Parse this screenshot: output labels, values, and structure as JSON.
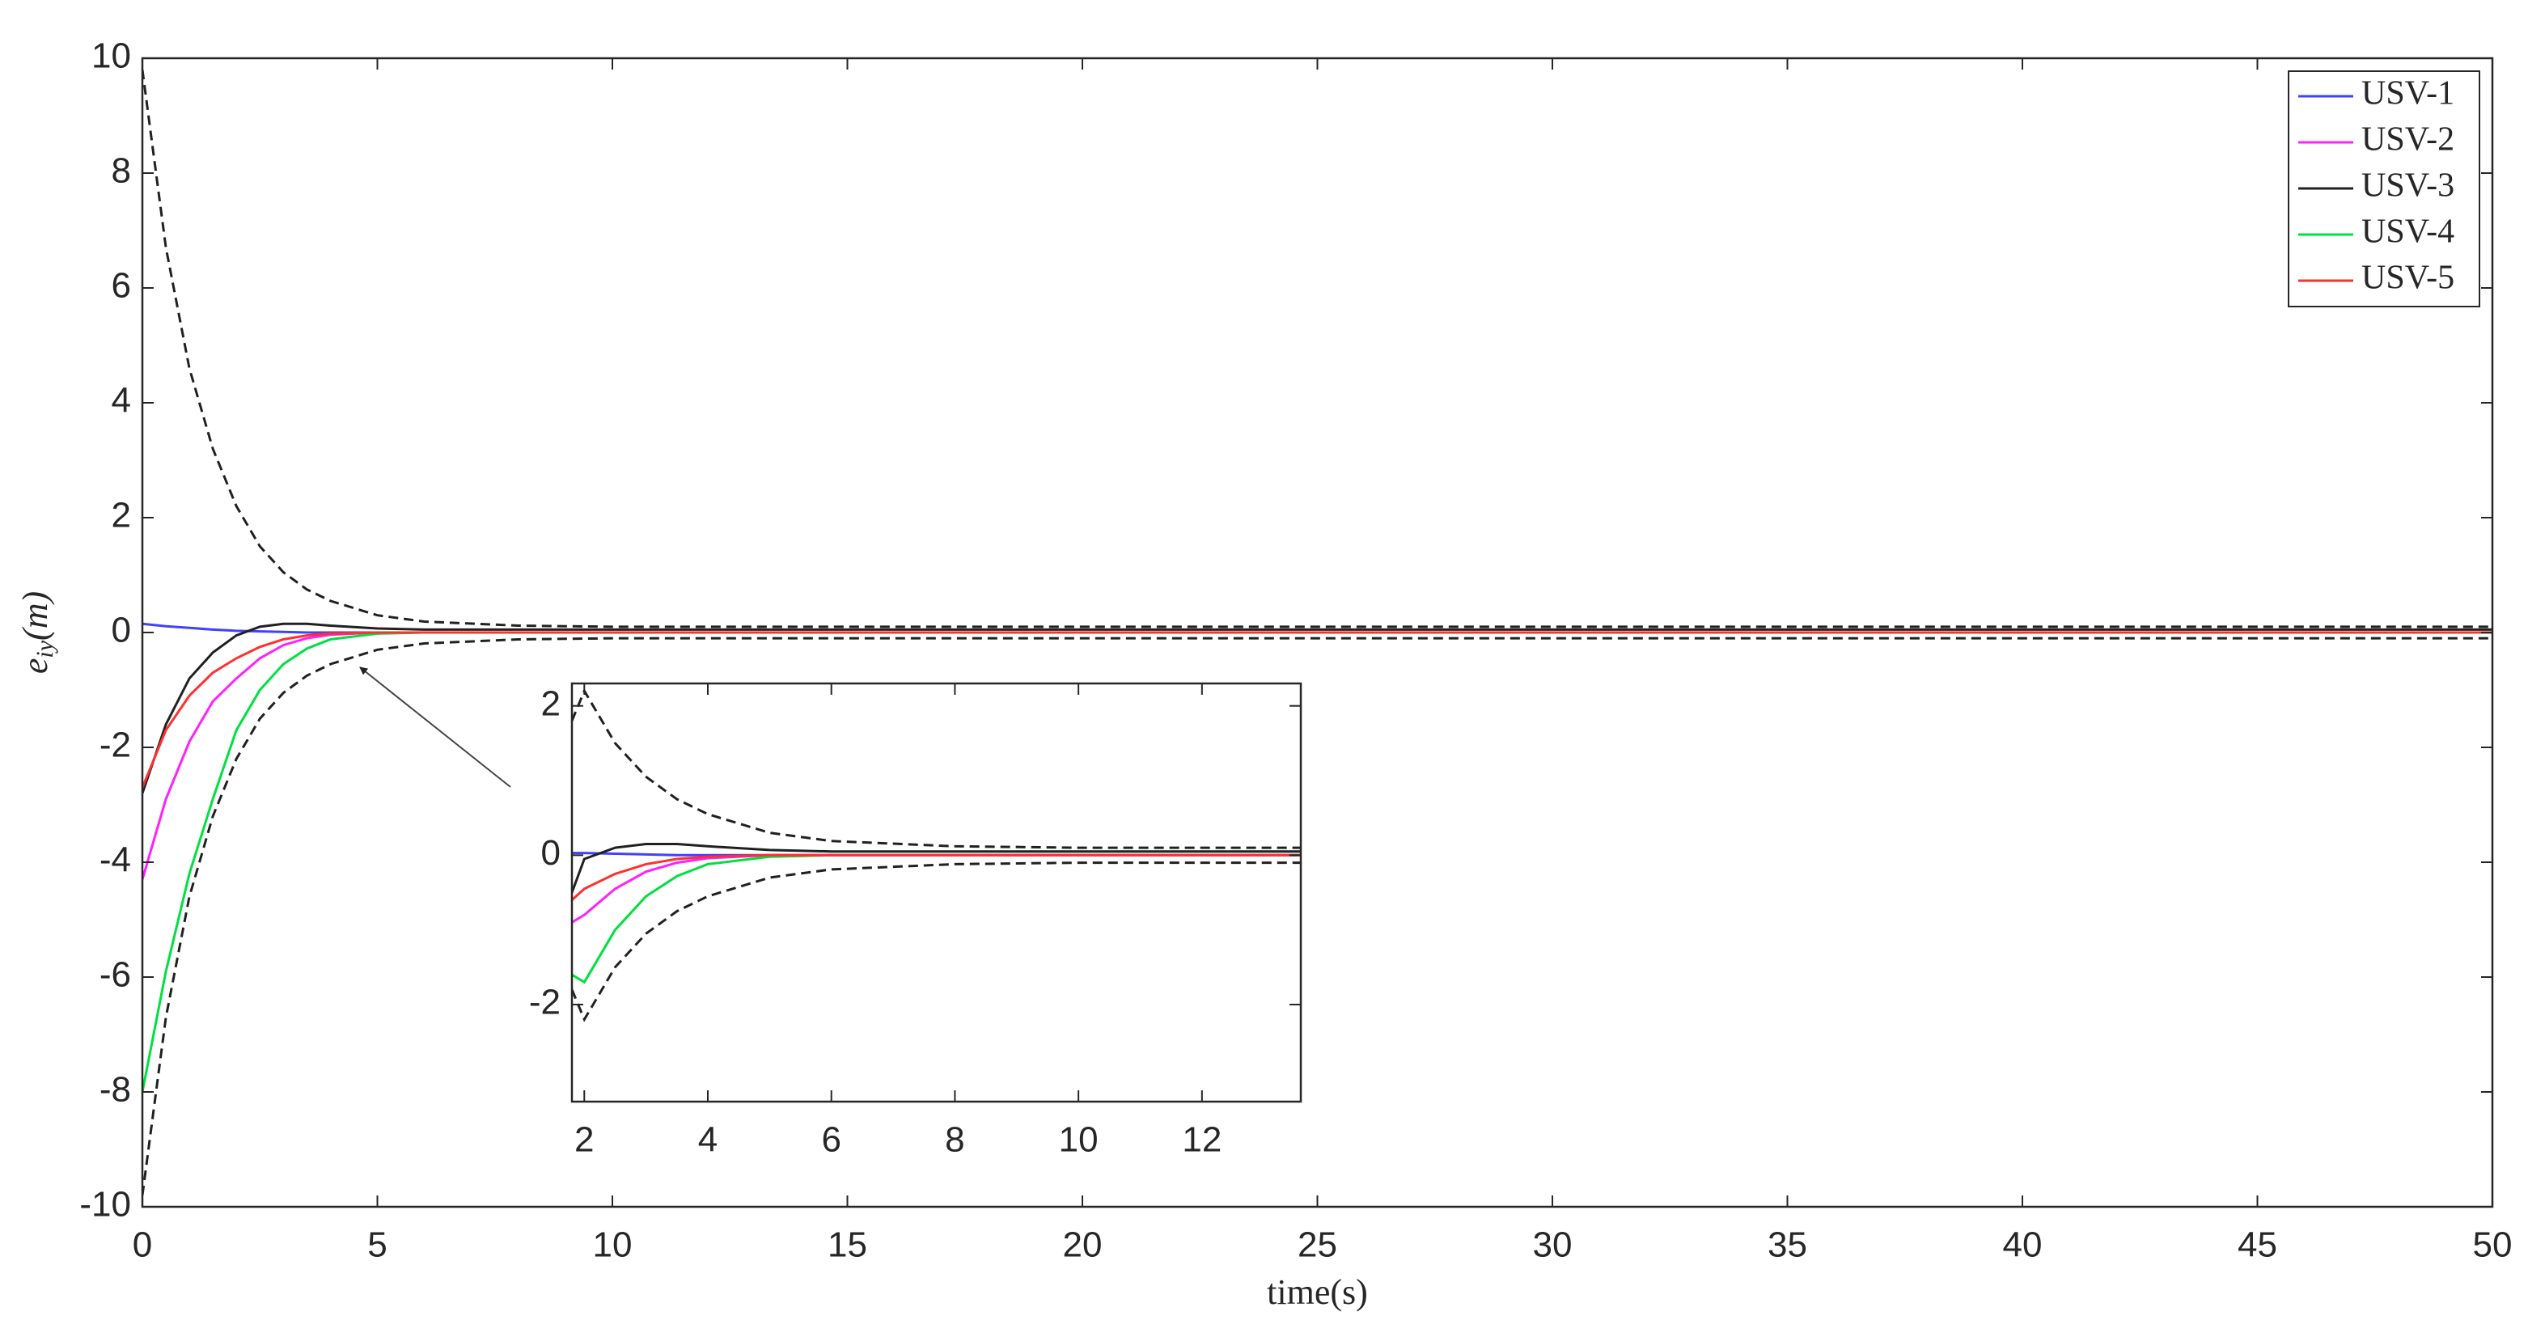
{
  "chart_data": [
    {
      "type": "line",
      "xlabel": "time(s)",
      "ylabel": "e_iy(m)",
      "x": [
        0,
        0.5,
        1,
        1.5,
        2,
        2.5,
        3,
        3.5,
        4,
        5,
        6,
        8,
        10,
        20,
        30,
        40,
        50
      ],
      "series": [
        {
          "name": "USV-1",
          "color": "#4040ff",
          "values": [
            0.15,
            0.11,
            0.08,
            0.05,
            0.03,
            0.02,
            0.01,
            0,
            0,
            0,
            0,
            0,
            0,
            0,
            0,
            0,
            0
          ]
        },
        {
          "name": "USV-2",
          "color": "#ff20ff",
          "values": [
            -4.3,
            -2.9,
            -1.9,
            -1.2,
            -0.8,
            -0.45,
            -0.22,
            -0.1,
            -0.04,
            0,
            0,
            0,
            0,
            0,
            0,
            0,
            0
          ]
        },
        {
          "name": "USV-3",
          "color": "#202020",
          "values": [
            -2.8,
            -1.6,
            -0.8,
            -0.35,
            -0.05,
            0.1,
            0.15,
            0.15,
            0.12,
            0.07,
            0.05,
            0.05,
            0.05,
            0.05,
            0.05,
            0.05,
            0.05
          ]
        },
        {
          "name": "USV-4",
          "color": "#00e040",
          "values": [
            -8,
            -5.9,
            -4.2,
            -2.9,
            -1.7,
            -1,
            -0.55,
            -0.28,
            -0.12,
            -0.02,
            0,
            0,
            0,
            0,
            0,
            0,
            0
          ]
        },
        {
          "name": "USV-5",
          "color": "#ff3030",
          "values": [
            -2.7,
            -1.7,
            -1.1,
            -0.7,
            -0.45,
            -0.25,
            -0.12,
            -0.05,
            -0.02,
            0,
            0,
            0,
            0,
            0,
            0,
            0,
            0
          ]
        },
        {
          "color": "#202020",
          "linestyle": "dashed",
          "values": [
            9.8,
            6.7,
            4.6,
            3.2,
            2.2,
            1.5,
            1.05,
            0.75,
            0.55,
            0.3,
            0.19,
            0.12,
            0.1,
            0.1,
            0.1,
            0.1,
            0.1
          ]
        },
        {
          "color": "#202020",
          "linestyle": "dashed",
          "values": [
            -9.8,
            -6.7,
            -4.6,
            -3.2,
            -2.2,
            -1.5,
            -1.05,
            -0.75,
            -0.55,
            -0.3,
            -0.19,
            -0.12,
            -0.1,
            -0.1,
            -0.1,
            -0.1,
            -0.1
          ]
        }
      ],
      "xlim": [
        0,
        50
      ],
      "xticks": [
        0,
        5,
        10,
        15,
        20,
        25,
        30,
        35,
        40,
        45,
        50
      ],
      "ylim": [
        -10,
        10
      ],
      "yticks": [
        -10,
        -8,
        -6,
        -4,
        -2,
        0,
        2,
        4,
        6,
        8,
        10
      ],
      "legend": "top-right"
    },
    {
      "type": "line",
      "x": [
        1.8,
        2,
        2.5,
        3,
        3.5,
        4,
        5,
        6,
        8,
        10,
        13.6
      ],
      "series": [
        {
          "color": "#4040ff",
          "values": [
            0.03,
            0.03,
            0.02,
            0.01,
            0,
            0,
            0,
            0,
            0,
            0,
            0
          ]
        },
        {
          "color": "#ff20ff",
          "values": [
            -0.9,
            -0.8,
            -0.45,
            -0.22,
            -0.1,
            -0.04,
            0,
            0,
            0,
            0,
            0
          ]
        },
        {
          "color": "#202020",
          "values": [
            -0.5,
            -0.05,
            0.1,
            0.15,
            0.15,
            0.12,
            0.07,
            0.05,
            0.05,
            0.05,
            0.05
          ]
        },
        {
          "color": "#00e040",
          "values": [
            -1.6,
            -1.7,
            -1,
            -0.55,
            -0.28,
            -0.12,
            -0.02,
            0,
            0,
            0,
            0
          ]
        },
        {
          "color": "#ff3030",
          "values": [
            -0.6,
            -0.45,
            -0.25,
            -0.12,
            -0.05,
            -0.02,
            0,
            0,
            0,
            0,
            0
          ]
        },
        {
          "color": "#202020",
          "linestyle": "dashed",
          "values": [
            1.8,
            2.2,
            1.5,
            1.05,
            0.75,
            0.55,
            0.3,
            0.19,
            0.12,
            0.1,
            0.1
          ]
        },
        {
          "color": "#202020",
          "linestyle": "dashed",
          "values": [
            -1.8,
            -2.2,
            -1.5,
            -1.05,
            -0.75,
            -0.55,
            -0.3,
            -0.19,
            -0.12,
            -0.1,
            -0.1
          ]
        }
      ],
      "xlim": [
        1.8,
        13.6
      ],
      "xticks": [
        2,
        4,
        6,
        8,
        10,
        12
      ],
      "ylim": [
        -3.3,
        2.3
      ],
      "yticks": [
        -2,
        0,
        2
      ]
    }
  ]
}
